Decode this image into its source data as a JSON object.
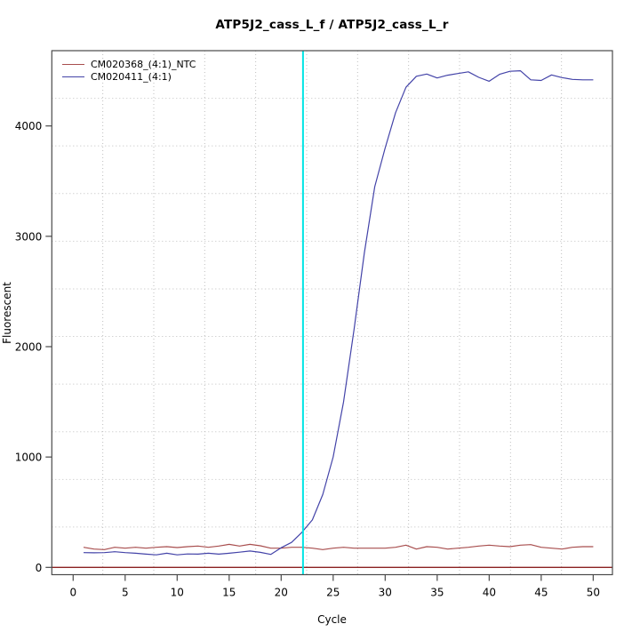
{
  "title": "ATP5J2_cass_L_f / ATP5J2_cass_L_r",
  "colors": {
    "ntc_series": "#a84e4e",
    "sample_series": "#4343a8",
    "threshold_line": "#8b2222",
    "ct_line": "#00e4e4",
    "grid": "#bfbfbf",
    "axis_box": "#4a4a4a"
  },
  "legend": {
    "position": "top-left",
    "entries": [
      {
        "label": "CM020368_(4:1)_NTC"
      },
      {
        "label": "CM020411_(4:1)"
      }
    ]
  },
  "chart_data": {
    "type": "line",
    "title": "ATP5J2_cass_L_f / ATP5J2_cass_L_r",
    "xlabel": "Cycle",
    "ylabel": "Fluorescent",
    "x_ticks": [
      0,
      5,
      10,
      15,
      20,
      25,
      30,
      35,
      40,
      45,
      50
    ],
    "y_ticks": [
      0,
      1000,
      2000,
      3000,
      4000
    ],
    "xlim": [
      -2.05,
      51.85
    ],
    "ylim": [
      -66,
      4682
    ],
    "grid": "dotted, 11x11 cells, not aligned to ticks",
    "legend_position": "top-left",
    "x": [
      1,
      2,
      3,
      4,
      5,
      6,
      7,
      8,
      9,
      10,
      11,
      12,
      13,
      14,
      15,
      16,
      17,
      18,
      19,
      20,
      21,
      22,
      23,
      24,
      25,
      26,
      27,
      28,
      29,
      30,
      31,
      32,
      33,
      34,
      35,
      36,
      37,
      38,
      39,
      40,
      41,
      42,
      43,
      44,
      45,
      46,
      47,
      48,
      49,
      50
    ],
    "series": [
      {
        "name": "CM020368_(4:1)_NTC",
        "color": "#a84e4e",
        "values": [
          182,
          166,
          161,
          182,
          174,
          182,
          174,
          182,
          188,
          180,
          188,
          193,
          182,
          193,
          209,
          193,
          209,
          196,
          174,
          174,
          182,
          182,
          174,
          161,
          174,
          182,
          174,
          174,
          174,
          174,
          182,
          201,
          166,
          188,
          182,
          166,
          174,
          182,
          193,
          201,
          193,
          188,
          201,
          206,
          182,
          174,
          166,
          182,
          188,
          188
        ]
      },
      {
        "name": "CM020411_(4:1)",
        "color": "#4343a8",
        "values": [
          134,
          132,
          134,
          142,
          134,
          128,
          120,
          114,
          128,
          114,
          122,
          120,
          128,
          120,
          128,
          138,
          148,
          136,
          118,
          178,
          226,
          318,
          430,
          660,
          1000,
          1500,
          2150,
          2850,
          3450,
          3800,
          4120,
          4350,
          4450,
          4470,
          4435,
          4460,
          4475,
          4490,
          4440,
          4405,
          4468,
          4495,
          4500,
          4418,
          4412,
          4462,
          4438,
          4422,
          4418,
          4418
        ]
      }
    ],
    "annotations": {
      "threshold_hline_y": 0,
      "ct_vline_x": 22.1
    }
  }
}
